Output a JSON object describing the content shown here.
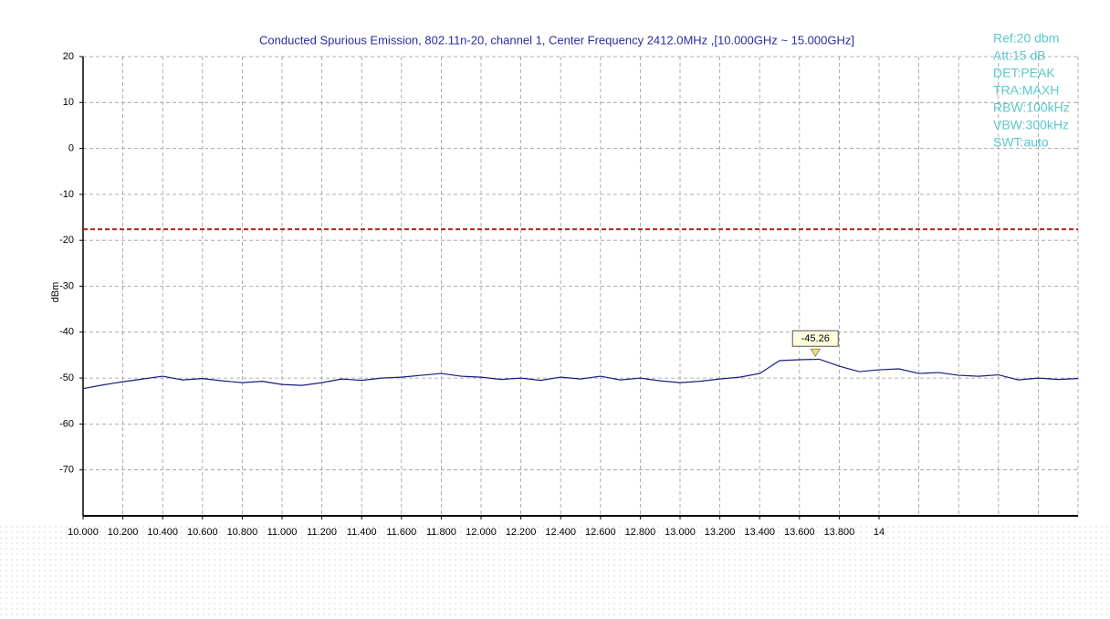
{
  "chart_data": {
    "type": "line",
    "title": "Conducted Spurious Emission, 802.11n-20, channel 1, Center Frequency 2412.0MHz ,[10.000GHz ~ 15.000GHz]",
    "y_label": "dBm",
    "info": [
      "Ref:20 dbm",
      "Att:15 dB",
      "DET:PEAK",
      "TRA:MAXH",
      "RBW:100kHz",
      "VBW:300kHz",
      "SWT:auto"
    ],
    "xlim": [
      10,
      15
    ],
    "ylim": [
      -80,
      20
    ],
    "yticks": [
      20,
      10,
      0,
      -10,
      -20,
      -30,
      -40,
      -50,
      -60,
      -70
    ],
    "xticks": [
      {
        "value": 10,
        "label": "10.000"
      },
      {
        "value": 10.2,
        "label": "10.200"
      },
      {
        "value": 10.4,
        "label": "10.400"
      },
      {
        "value": 10.6,
        "label": "10.600"
      },
      {
        "value": 10.8,
        "label": "10.800"
      },
      {
        "value": 11,
        "label": "11.000"
      },
      {
        "value": 11.2,
        "label": "11.200"
      },
      {
        "value": 11.4,
        "label": "11.400"
      },
      {
        "value": 11.6,
        "label": "11.600"
      },
      {
        "value": 11.8,
        "label": "11.800"
      },
      {
        "value": 12,
        "label": "12.000"
      },
      {
        "value": 12.2,
        "label": "12.200"
      },
      {
        "value": 12.4,
        "label": "12.400"
      },
      {
        "value": 12.6,
        "label": "12.600"
      },
      {
        "value": 12.8,
        "label": "12.800"
      },
      {
        "value": 13,
        "label": "13.000"
      },
      {
        "value": 13.2,
        "label": "13.200"
      },
      {
        "value": 13.4,
        "label": "13.400"
      },
      {
        "value": 13.6,
        "label": "13.600"
      },
      {
        "value": 13.8,
        "label": "13.800"
      },
      14
    ],
    "grid": true,
    "limit_line": {
      "value": -17.6,
      "color": "#b22222"
    },
    "marker": {
      "x": 13.68,
      "value": -45.26
    },
    "series": [
      {
        "color": "#1a1a80",
        "x": [
          10,
          10.1,
          10.2,
          10.3,
          10.4,
          10.5,
          10.6,
          10.7,
          10.8,
          10.9,
          11,
          11.1,
          11.2,
          11.3,
          11.4,
          11.5,
          11.6,
          11.7,
          11.8,
          11.9,
          12,
          12.1,
          12.2,
          12.3,
          12.4,
          12.5,
          12.6,
          12.7,
          12.8,
          12.9,
          13,
          13.1,
          13.2,
          13.3,
          13.4,
          13.5,
          13.6,
          13.7,
          13.8,
          13.9,
          14,
          14.1,
          14.2,
          14.3,
          14.4,
          14.5,
          14.6,
          14.7,
          14.8,
          14.9,
          15
        ],
        "values": [
          -52.3,
          -51.5,
          -50.8,
          -50.2,
          -49.6,
          -50.4,
          -50.1,
          -50.6,
          -51.0,
          -50.7,
          -51.4,
          -51.6,
          -51.0,
          -50.2,
          -50.5,
          -50.0,
          -49.8,
          -49.4,
          -49.0,
          -49.6,
          -49.8,
          -50.3,
          -50.0,
          -50.5,
          -49.8,
          -50.2,
          -49.6,
          -50.4,
          -50.0,
          -50.6,
          -51.0,
          -50.7,
          -50.2,
          -49.8,
          -49.0,
          -46.2,
          -46.0,
          -45.9,
          -47.4,
          -48.6,
          -48.2,
          -48.0,
          -49.0,
          -48.8,
          -49.4,
          -49.6,
          -49.3,
          -50.4,
          -50.0,
          -50.3,
          -50.1
        ]
      }
    ]
  }
}
